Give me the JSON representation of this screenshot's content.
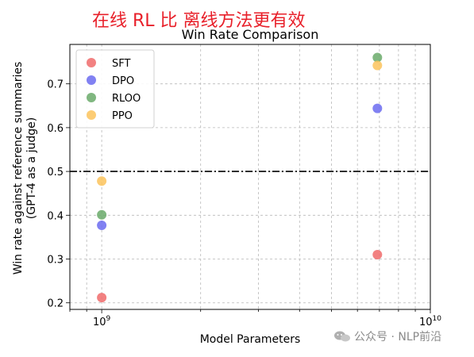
{
  "overlay_title": "在线 RL 比 离线方法更有效",
  "watermark": "公众号 · NLP前沿",
  "chart_data": {
    "type": "scatter",
    "title": "Win Rate Comparison",
    "xlabel": "Model Parameters",
    "ylabel_lines": [
      "Win rate against reference summaries",
      "(GPT-4 as a judge)"
    ],
    "xscale": "log",
    "xlim": [
      800000000,
      10000000000
    ],
    "ylim": [
      0.185,
      0.79
    ],
    "xtick_labels": [
      {
        "base": "10",
        "exp": "9",
        "value": 1000000000
      },
      {
        "base": "10",
        "exp": "10",
        "value": 10000000000
      }
    ],
    "yticks": [
      0.2,
      0.3,
      0.4,
      0.5,
      0.6,
      0.7
    ],
    "ytick_labels": [
      "0.2",
      "0.3",
      "0.4",
      "0.5",
      "0.6",
      "0.7"
    ],
    "reference_line": {
      "y": 0.5,
      "style": "dash-dot",
      "color": "#000000"
    },
    "grid": true,
    "legend_position": "top-left",
    "series": [
      {
        "name": "SFT",
        "color": "#f06b6b",
        "points": [
          [
            1000000000,
            0.212
          ],
          [
            6900000000,
            0.31
          ]
        ]
      },
      {
        "name": "DPO",
        "color": "#6b6bf0",
        "points": [
          [
            1000000000,
            0.377
          ],
          [
            6900000000,
            0.644
          ]
        ]
      },
      {
        "name": "RLOO",
        "color": "#6aaa6a",
        "points": [
          [
            1000000000,
            0.401
          ],
          [
            6900000000,
            0.76
          ]
        ]
      },
      {
        "name": "PPO",
        "color": "#fbc35c",
        "points": [
          [
            1000000000,
            0.478
          ],
          [
            6900000000,
            0.742
          ]
        ]
      }
    ]
  }
}
